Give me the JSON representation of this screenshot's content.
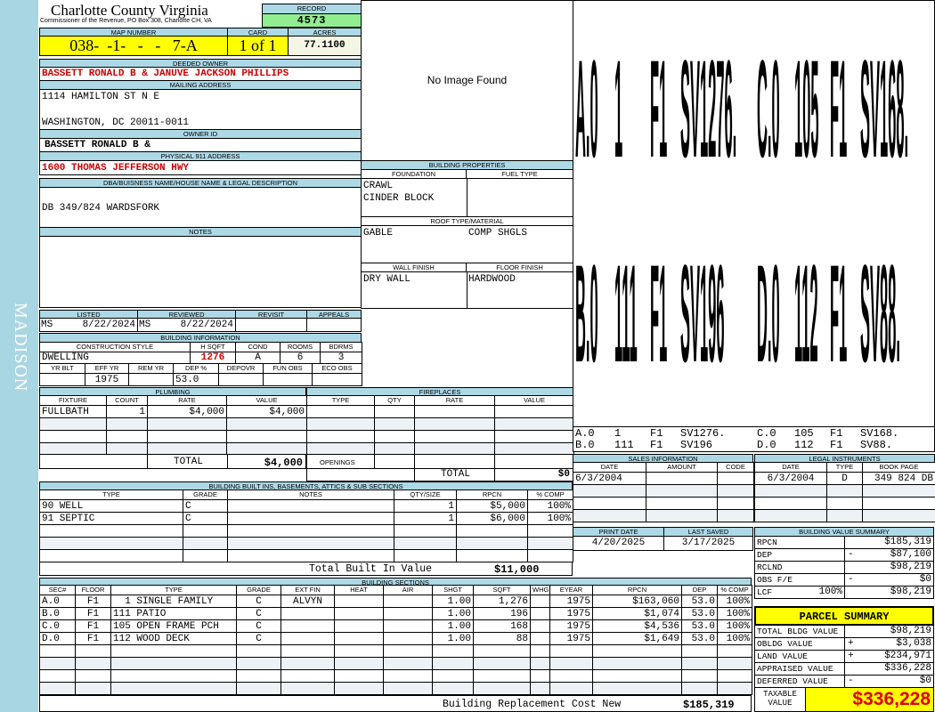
{
  "district": "MADISON",
  "header": {
    "title": "Charlotte County Virginia",
    "subtitle": "Commissioner of the Revenue, PO Box 308, Charlotte CH, VA",
    "record_label": "RECORD",
    "record": "4573"
  },
  "map": {
    "map_label": "MAP NUMBER",
    "map_number": "038-  -1-   -   -   7-A",
    "card_label": "CARD",
    "card": "1 of 1",
    "acres_label": "ACRES",
    "acres": "77.1100"
  },
  "owner": {
    "deeded_label": "DEEDED OWNER",
    "deeded": "BASSETT RONALD B & JANUVE JACKSON PHILLIPS",
    "mailing_label": "MAILING ADDRESS",
    "mailing_line1": "1114 HAMILTON ST N E",
    "mailing_line2": "WASHINGTON, DC 20011-0011",
    "owner_id_label": "OWNER ID",
    "owner_id": "BASSETT RONALD B &",
    "address_label": "PHYSICAL 911 ADDRESS",
    "address": "1600 THOMAS JEFFERSON HWY"
  },
  "dba": {
    "label": "DBA/BUISNESS NAME/HOUSE NAME & LEGAL DESCRIPTION",
    "value": "DB 349/824 WARDSFORK"
  },
  "notes": {
    "label": "NOTES"
  },
  "image": {
    "placeholder": "No Image Found"
  },
  "properties": {
    "title": "BUILDING PROPERTIES",
    "foundation_label": "FOUNDATION",
    "foundation": [
      "CRAWL",
      "CINDER BLOCK"
    ],
    "fuel_label": "FUEL TYPE",
    "roof_label": "ROOF TYPE/MATERIAL",
    "roof_type": "GABLE",
    "roof_material": "COMP SHGLS",
    "wall_label": "WALL FINISH",
    "wall": "DRY WALL",
    "floor_label": "FLOOR FINISH",
    "floor": "HARDWOOD"
  },
  "review": {
    "listed_label": "LISTED",
    "reviewed_label": "REVIEWED",
    "revisit_label": "REVISIT",
    "appeals_label": "APPEALS",
    "listed_by": "MS",
    "listed": "8/22/2024",
    "reviewed_by": "MS",
    "reviewed": "8/22/2024"
  },
  "building_info": {
    "title": "BUILDING INFORMATION",
    "headers1": [
      "CONSTRUCTION STYLE",
      "H SQFT",
      "COND",
      "ROOMS",
      "BDRMS"
    ],
    "values1": [
      "DWELLING",
      "1276",
      "A",
      "6",
      "3"
    ],
    "headers2": [
      "YR BLT",
      "EFF YR",
      "REM YR",
      "DEP %",
      "DEPOVR",
      "FUN OBS",
      "ECO OBS"
    ],
    "values2": [
      "",
      "1975",
      "",
      "53.0",
      "",
      "",
      ""
    ]
  },
  "plumbing": {
    "title": "PLUMBING",
    "headers": [
      "FIXTURE",
      "COUNT",
      "RATE",
      "VALUE"
    ],
    "rows": [
      [
        "FULLBATH",
        "1",
        "$4,000",
        "$4,000"
      ]
    ],
    "total_label": "TOTAL",
    "total": "$4,000"
  },
  "fireplaces": {
    "title": "FIREPLACES",
    "headers": [
      "TYPE",
      "QTY",
      "RATE",
      "VALUE"
    ],
    "rows": [],
    "openings_label": "OPENINGS",
    "total_label": "TOTAL",
    "total": "$0"
  },
  "built_ins": {
    "title": "BUILDING BUILT INS, BASEMENTS, ATTICS & SUB SECTIONS",
    "headers": [
      "TYPE",
      "GRADE",
      "NOTES",
      "QTY/SIZE",
      "RPCN",
      "% COMP"
    ],
    "rows": [
      [
        "90 WELL",
        "C",
        "",
        "1",
        "$5,000",
        "100%"
      ],
      [
        "91 SEPTIC",
        "C",
        "",
        "1",
        "$6,000",
        "100%"
      ]
    ],
    "total_label": "Total Built In Value",
    "total": "$11,000"
  },
  "sections": {
    "title": "BUILDING SECTIONS",
    "headers": [
      "SEC#",
      "FLOOR",
      "TYPE",
      "GRADE",
      "EXT FIN",
      "HEAT",
      "AIR",
      "SHGT",
      "SQFT",
      "WHGT",
      "EYEAR",
      "RPCN",
      "DEP",
      "% COMP"
    ],
    "rows": [
      [
        "A.0",
        "F1",
        "  1 SINGLE FAMILY",
        "C",
        "ALVYN",
        "",
        "",
        "1.00",
        "1,276",
        "",
        "1975",
        "$163,060",
        "53.0",
        "100%"
      ],
      [
        "B.0",
        "F1",
        "111 PATIO",
        "C",
        "",
        "",
        "",
        "1.00",
        "196",
        "",
        "1975",
        "$1,074",
        "53.0",
        "100%"
      ],
      [
        "C.0",
        "F1",
        "105 OPEN FRAME PCH",
        "C",
        "",
        "",
        "",
        "1.00",
        "168",
        "",
        "1975",
        "$4,536",
        "53.0",
        "100%"
      ],
      [
        "D.0",
        "F1",
        "112 WOOD DECK",
        "C",
        "",
        "",
        "",
        "1.00",
        "88",
        "",
        "1975",
        "$1,649",
        "53.0",
        "100%"
      ]
    ],
    "total_label": "Building Replacement Cost New",
    "total": "$185,319"
  },
  "sketch": {
    "labels": [
      [
        "A.0",
        "1",
        "F1",
        "SV1276.",
        "C.0",
        "105",
        "F1",
        "SV168."
      ],
      [
        "B.0",
        "111",
        "F1",
        "SV196",
        "D.0",
        "112",
        "F1",
        "SV88."
      ]
    ],
    "legend": [
      [
        "A.0",
        "1",
        "F1",
        "SV1276.",
        "C.0",
        "105",
        "F1",
        "SV168."
      ],
      [
        "B.0",
        "111",
        "F1",
        "SV196",
        "D.0",
        "112",
        "F1",
        "SV88."
      ]
    ]
  },
  "sales": {
    "title": "SALES INFORMATION",
    "headers": [
      "DATE",
      "AMOUNT",
      "CODE"
    ],
    "rows": [
      [
        "6/3/2004",
        "",
        ""
      ]
    ]
  },
  "legal": {
    "title": "LEGAL INSTRUMENTS",
    "headers": [
      "DATE",
      "TYPE",
      "BOOK PAGE"
    ],
    "rows": [
      [
        "6/3/2004",
        "D",
        "349 824 DB"
      ]
    ]
  },
  "dates": {
    "print_label": "PRINT DATE",
    "print": "4/20/2025",
    "saved_label": "LAST SAVED",
    "saved": "3/17/2025"
  },
  "bvs": {
    "title": "BUILDING VALUE SUMMARY",
    "rows": [
      {
        "label": "RPCN",
        "pct": "",
        "sign": "",
        "value": "$185,319"
      },
      {
        "label": "DEP",
        "pct": "",
        "sign": "-",
        "value": "$87,100"
      },
      {
        "label": "RCLND",
        "pct": "",
        "sign": "",
        "value": "$98,219"
      },
      {
        "label": "OBS F/E",
        "pct": "",
        "sign": "-",
        "value": "$0"
      },
      {
        "label": "LCF",
        "pct": "100%",
        "sign": "",
        "value": "$98,219"
      }
    ]
  },
  "parcel": {
    "title": "PARCEL SUMMARY",
    "rows": [
      {
        "label": "TOTAL BLDG VALUE",
        "sign": "",
        "value": "$98,219"
      },
      {
        "label": "OBLDG VALUE",
        "sign": "+",
        "value": "$3,038"
      },
      {
        "label": "LAND VALUE",
        "sign": "+",
        "value": "$234,971"
      },
      {
        "label": "APPRAISED VALUE",
        "sign": "",
        "value": "$336,228"
      },
      {
        "label": "DEFERRED VALUE",
        "sign": "-",
        "value": "$0"
      }
    ],
    "taxable_label_1": "TAXABLE",
    "taxable_label_2": "VALUE",
    "taxable": "$336,228"
  },
  "colors": {
    "sidebar": "#a9d6e3",
    "header": "#add8e6",
    "record": "#90ee90",
    "highlight": "#ffff00",
    "accent_red": "#d00000"
  }
}
